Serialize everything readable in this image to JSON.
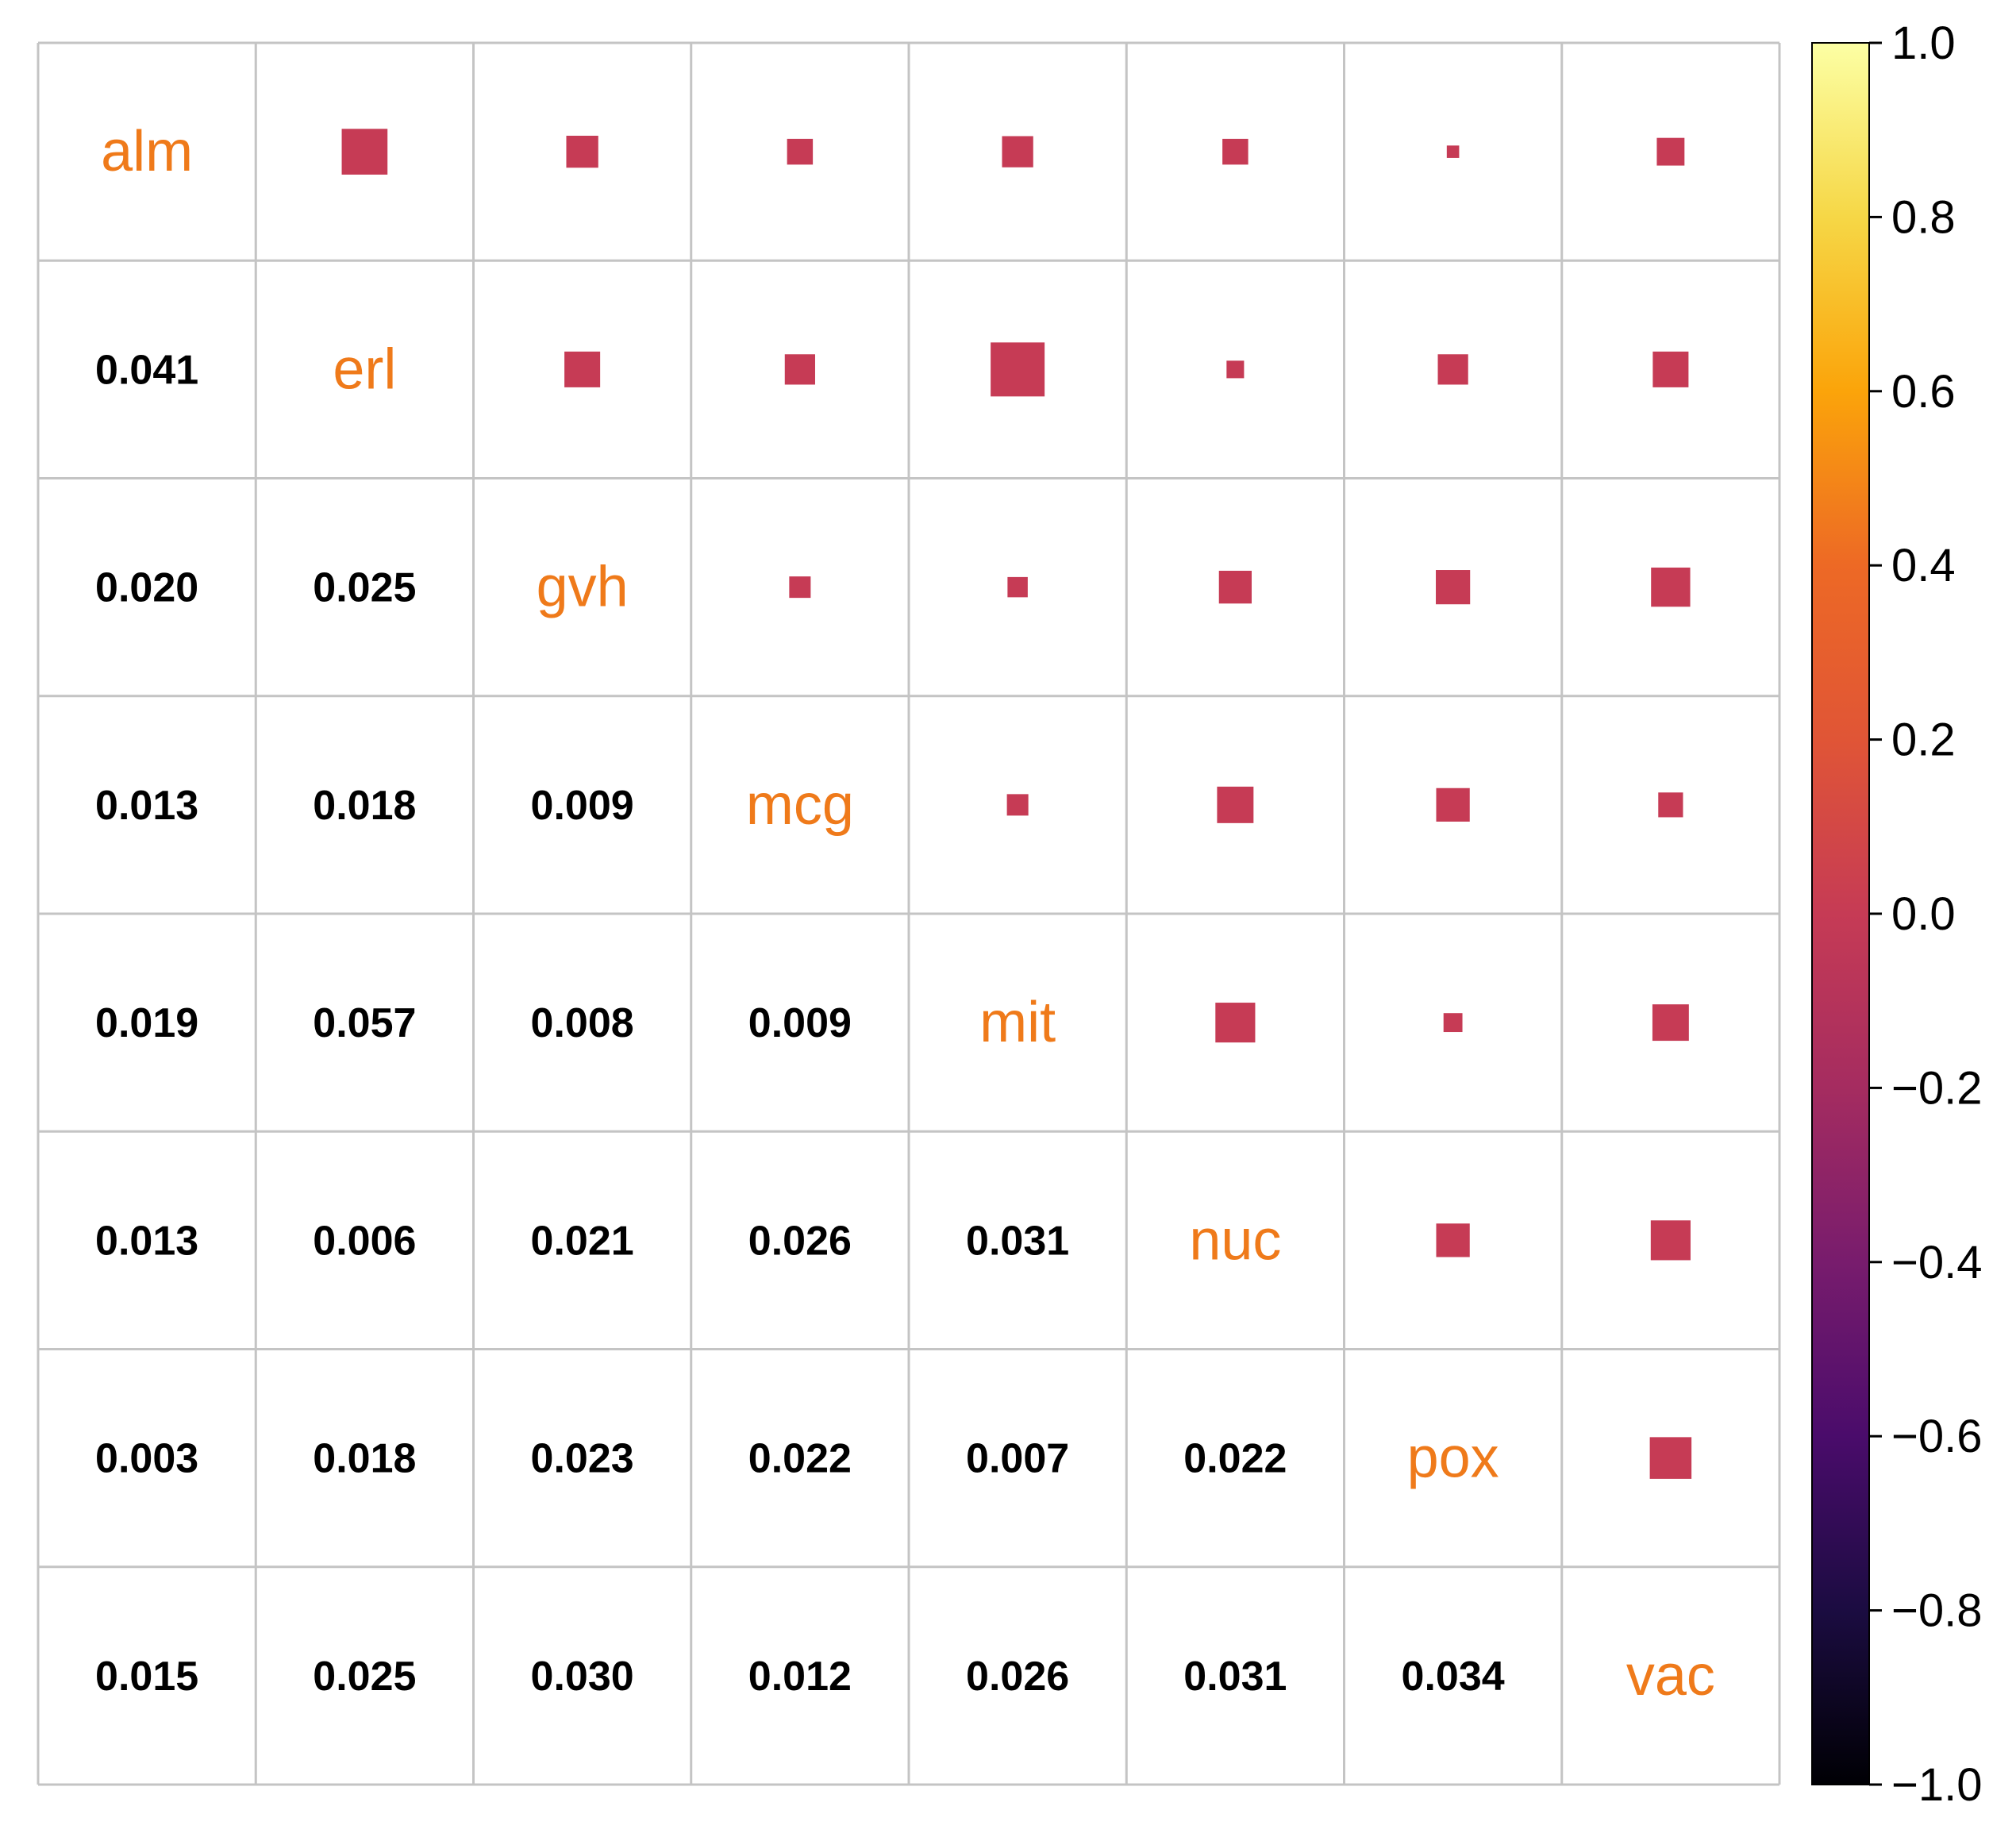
{
  "chart_data": {
    "type": "heatmap",
    "variables": [
      "alm",
      "erl",
      "gvh",
      "mcg",
      "mit",
      "nuc",
      "pox",
      "vac"
    ],
    "lower_values": [
      [
        null,
        null,
        null,
        null,
        null,
        null,
        null,
        null
      ],
      [
        "0.041",
        null,
        null,
        null,
        null,
        null,
        null,
        null
      ],
      [
        "0.020",
        "0.025",
        null,
        null,
        null,
        null,
        null,
        null
      ],
      [
        "0.013",
        "0.018",
        "0.009",
        null,
        null,
        null,
        null,
        null
      ],
      [
        "0.019",
        "0.057",
        "0.008",
        "0.009",
        null,
        null,
        null,
        null
      ],
      [
        "0.013",
        "0.006",
        "0.021",
        "0.026",
        "0.031",
        null,
        null,
        null
      ],
      [
        "0.003",
        "0.018",
        "0.023",
        "0.022",
        "0.007",
        "0.022",
        null,
        null
      ],
      [
        "0.015",
        "0.025",
        "0.030",
        "0.012",
        "0.026",
        "0.031",
        "0.034",
        null
      ]
    ],
    "upper_shape": "square",
    "upper_size_scale": "abs",
    "colorbar": {
      "min": -1.0,
      "max": 1.0,
      "ticks": [
        "1.0",
        "0.8",
        "0.6",
        "0.4",
        "0.2",
        "0.0",
        "−0.2",
        "−0.4",
        "−0.6",
        "−0.8",
        "−1.0"
      ],
      "palette": "inferno"
    },
    "colors": {
      "label_color": "#ef7a1a",
      "value_color": "#000000",
      "square_color": "#c63b55",
      "grid_color": "#c4c4c4",
      "background": "#ffffff"
    },
    "grid": true
  }
}
